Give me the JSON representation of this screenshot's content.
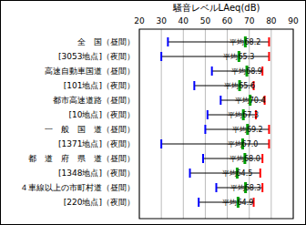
{
  "chart_data": {
    "type": "range",
    "orientation": "horizontal",
    "title": "騒音レベルLAeq(dB)",
    "categories": [
      "全　国（昼間）",
      "[3053地点]（夜間）",
      "高速自動車国道（昼間）",
      "[101地点]（夜間）",
      "都市高速道路（昼間）",
      "[10地点]（夜間）",
      "一　般　国　道（昼間）",
      "[1371地点]（夜間）",
      "都　道　府　県　道（昼間）",
      "[1348地点]（夜間）",
      "４車線以上の市町村道（昼間）",
      "[220地点]（夜間）"
    ],
    "values": [
      68.2,
      65.3,
      68.9,
      65.6,
      70.4,
      67.3,
      69.2,
      67.0,
      68.0,
      64.5,
      68.3,
      64.9
    ],
    "value_labels": [
      "平均68.2",
      "平均65.3",
      "平均68.9",
      "平均65.6",
      "平均70.4",
      "平均67.3",
      "平均69.2",
      "平均67.0",
      "平均68.0",
      "平均64.5",
      "平均68.3",
      "平均64.9"
    ],
    "low": [
      33,
      30,
      53,
      45,
      57,
      51,
      50,
      30,
      49,
      43,
      55,
      47
    ],
    "high": [
      79,
      79,
      76,
      72,
      77,
      73,
      79,
      79,
      76,
      75,
      76,
      72
    ],
    "color": "#00a000",
    "xlim": [
      20,
      90
    ],
    "xticks": [
      20,
      30,
      40,
      50,
      60,
      70,
      80,
      90
    ],
    "grid": true,
    "data_labels": true
  }
}
